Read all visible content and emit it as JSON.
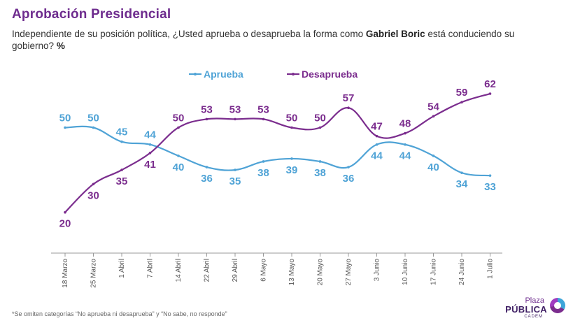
{
  "header": {
    "title": "Aprobación Presidencial",
    "subtitle_pre": "Independiente de su posición política, ¿Usted aprueba o desaprueba la forma como ",
    "subtitle_name": "Gabriel Boric",
    "subtitle_post": " está conduciendo su gobierno? ",
    "subtitle_unit": "%"
  },
  "chart_data": {
    "type": "line",
    "categories": [
      "18 Marzo",
      "25 Marzo",
      "1 Abril",
      "7 Abril",
      "14 Abril",
      "22 Abril",
      "29 Abril",
      "6 Mayo",
      "13 Mayo",
      "20 Mayo",
      "27 Mayo",
      "3 Junio",
      "10 Junio",
      "17 Junio",
      "24 Junio",
      "1 Julio"
    ],
    "series": [
      {
        "name": "Aprueba",
        "color": "#4fa3d6",
        "values": [
          50,
          50,
          45,
          44,
          40,
          36,
          35,
          38,
          39,
          38,
          36,
          44,
          44,
          40,
          34,
          33
        ]
      },
      {
        "name": "Desaprueba",
        "color": "#7b2d8e",
        "values": [
          20,
          30,
          35,
          41,
          50,
          53,
          53,
          53,
          50,
          50,
          57,
          47,
          48,
          54,
          59,
          62
        ]
      }
    ],
    "legend_position": "top",
    "grid": false
  },
  "footer": {
    "note": "*Se omiten categorías “No aprueba ni desaprueba” y “No sabe, no responde”"
  },
  "logo": {
    "line1": "Plaza",
    "line2": "PÚBLICA",
    "line3": "CADEM"
  }
}
